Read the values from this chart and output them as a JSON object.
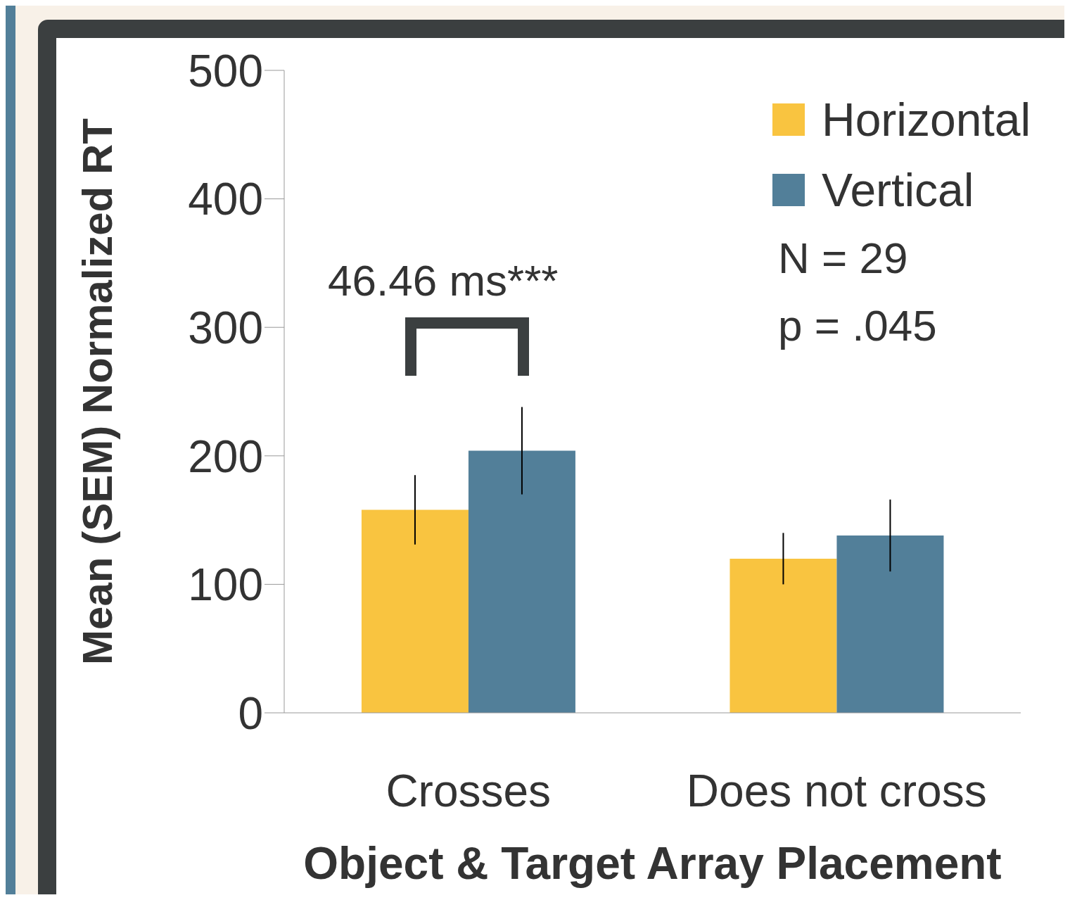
{
  "chart_data": {
    "type": "bar",
    "xlabel": "Object & Target Array Placement",
    "ylabel": "Mean (SEM) Normalized RT",
    "categories": [
      "Crosses",
      "Does not cross"
    ],
    "series": [
      {
        "name": "Horizontal",
        "color": "#f9c440",
        "values": [
          158,
          120
        ],
        "errors": [
          27,
          20
        ]
      },
      {
        "name": "Vertical",
        "color": "#527f99",
        "values": [
          204,
          138
        ],
        "errors": [
          34,
          28
        ]
      }
    ],
    "ylim": [
      0,
      500
    ],
    "yticks": [
      0,
      100,
      200,
      300,
      400,
      500
    ],
    "grid": false,
    "legend": "top right",
    "annotations": [
      "46.46 ms***",
      "N = 29",
      "p = .045"
    ]
  }
}
